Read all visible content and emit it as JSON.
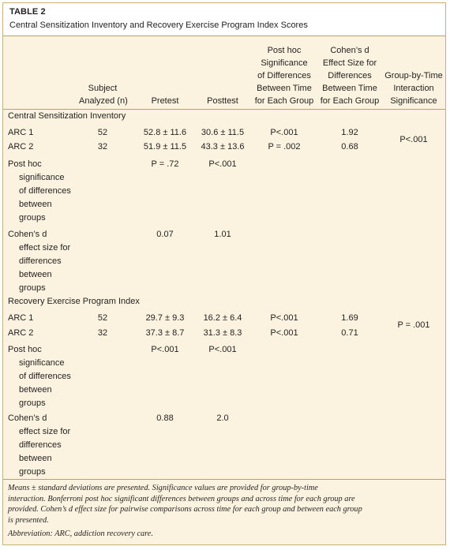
{
  "table": {
    "label": "TABLE 2",
    "title": "Central Sensitization Inventory and Recovery Exercise Program Index Scores"
  },
  "headers": {
    "subject": [
      "Subject",
      "Analyzed (n)"
    ],
    "pretest": "Pretest",
    "posttest": "Posttest",
    "posthoc": [
      "Post hoc",
      "Significance",
      "of Differences",
      "Between Time",
      "for Each Group"
    ],
    "cohens": [
      "Cohen’s d",
      "Effect Size for",
      "Differences",
      "Between Time",
      "for Each Group"
    ],
    "interaction": [
      "Group-by-Time",
      "Interaction",
      "Significance"
    ]
  },
  "sections": [
    {
      "title": "Central Sensitization Inventory",
      "rows": [
        {
          "label": "ARC 1",
          "n": "52",
          "pre": "52.8 ± 11.6",
          "post": "30.6 ± 11.5",
          "sig": "P<.001",
          "d": "1.92"
        },
        {
          "label": "ARC 2",
          "n": "32",
          "pre": "51.9 ± 11.5",
          "post": "43.3 ± 13.6",
          "sig": "P = .002",
          "d": "0.68"
        }
      ],
      "interaction": "P<.001",
      "posthoc_row": {
        "label": [
          "Post hoc",
          "significance",
          "of differences",
          "between",
          "groups"
        ],
        "pre": "P = .72",
        "post": "P<.001"
      },
      "cohens_row": {
        "label": [
          "Cohen’s d",
          "effect size for",
          "differences",
          "between",
          "groups"
        ],
        "pre": "0.07",
        "post": "1.01"
      }
    },
    {
      "title": "Recovery Exercise Program Index",
      "rows": [
        {
          "label": "ARC 1",
          "n": "52",
          "pre": "29.7 ± 9.3",
          "post": "16.2 ± 6.4",
          "sig": "P<.001",
          "d": "1.69"
        },
        {
          "label": "ARC 2",
          "n": "32",
          "pre": "37.3 ± 8.7",
          "post": "31.3 ± 8.3",
          "sig": "P<.001",
          "d": "0.71"
        }
      ],
      "interaction": "P = .001",
      "posthoc_row": {
        "label": [
          "Post hoc",
          "significance",
          "of differences",
          "between",
          "groups"
        ],
        "pre": "P<.001",
        "post": "P<.001"
      },
      "cohens_row": {
        "label": [
          "Cohen’s d",
          "effect size for",
          "differences",
          "between",
          "groups"
        ],
        "pre": "0.88",
        "post": "2.0"
      }
    }
  ],
  "footnote": [
    "Means ± standard deviations are presented. Significance values are provided for group-by-time",
    "interaction. Bonferroni post hoc significant differences between groups and across time for each group are",
    "provided. Cohen’s d effect size for pairwise comparisons across time for each group and between each group",
    "is presented."
  ],
  "abbreviation": "Abbreviation: ARC, addiction recovery care."
}
